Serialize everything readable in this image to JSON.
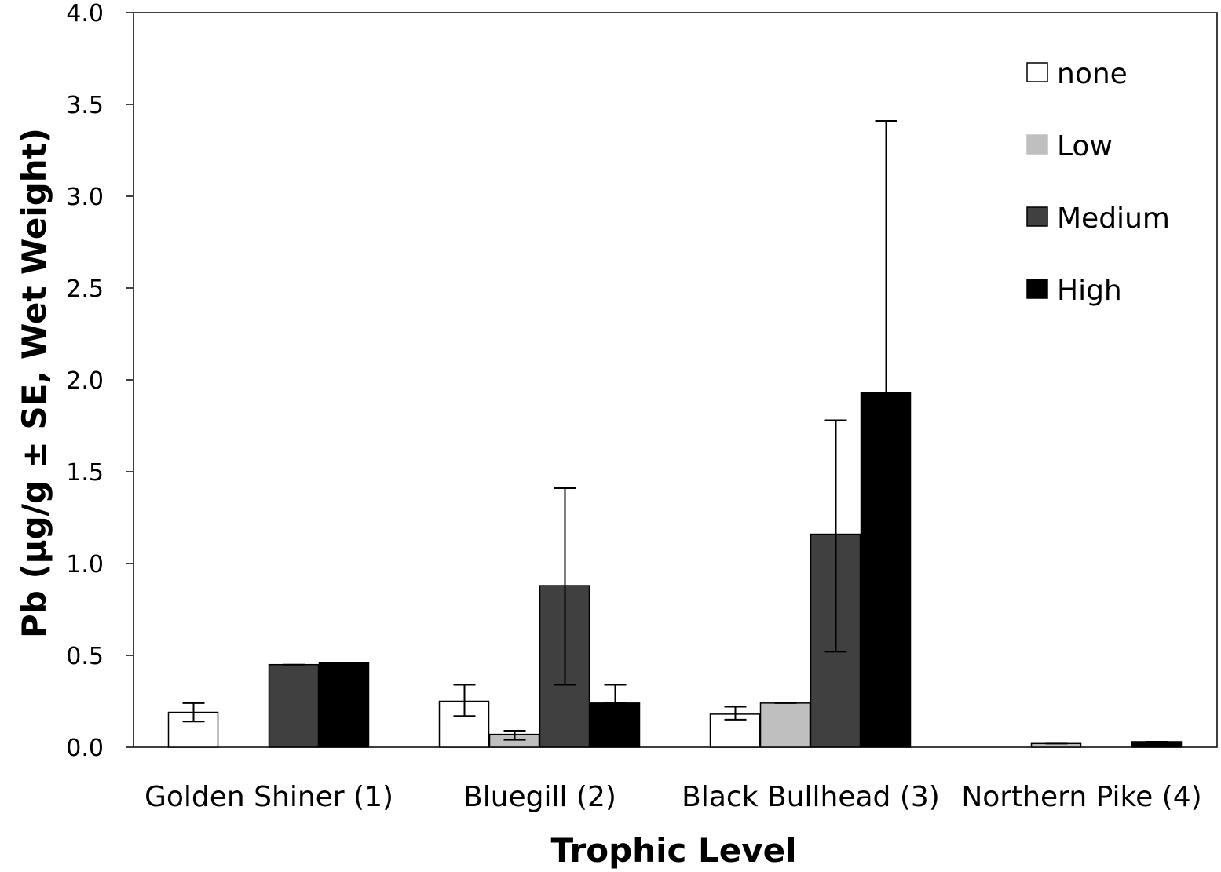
{
  "chart_data": {
    "type": "bar",
    "xlabel": "Trophic Level",
    "ylabel": "Pb (μg/g ± SE, Wet Weight)",
    "ylim": [
      0,
      4.0
    ],
    "yticks": [
      "0.0",
      "0.5",
      "1.0",
      "1.5",
      "2.0",
      "2.5",
      "3.0",
      "3.5",
      "4.0"
    ],
    "grid": false,
    "legend_position": "top-right",
    "categories": [
      "Golden Shiner (1)",
      "Bluegill (2)",
      "Black Bullhead (3)",
      "Northern Pike (4)"
    ],
    "series": [
      {
        "name": "none",
        "color": "#ffffff",
        "values": [
          0.19,
          0.25,
          0.18,
          0
        ],
        "error_low": [
          0.14,
          0.17,
          0.15,
          0
        ],
        "error_high": [
          0.24,
          0.34,
          0.22,
          0
        ]
      },
      {
        "name": "Low",
        "color": "#bfbfbf",
        "values": [
          0,
          0.07,
          0.24,
          0.02
        ],
        "error_low": [
          0,
          0.04,
          0.24,
          0.02
        ],
        "error_high": [
          0,
          0.09,
          0.24,
          0.02
        ]
      },
      {
        "name": "Medium",
        "color": "#404040",
        "values": [
          0.45,
          0.88,
          1.16,
          0
        ],
        "error_low": [
          0.45,
          0.34,
          0.52,
          0
        ],
        "error_high": [
          0.45,
          1.41,
          1.78,
          0
        ]
      },
      {
        "name": "High",
        "color": "#000000",
        "values": [
          0.46,
          0.24,
          1.93,
          0.03
        ],
        "error_low": [
          0.46,
          0.24,
          1.93,
          0.03
        ],
        "error_high": [
          0.46,
          0.34,
          3.41,
          0.03
        ]
      }
    ]
  }
}
